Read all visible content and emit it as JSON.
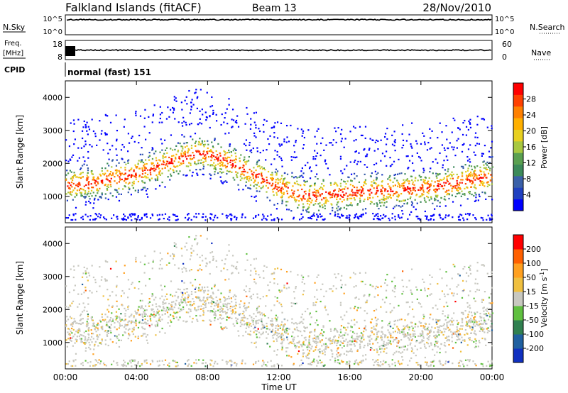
{
  "header": {
    "title": "Falkland Islands (fitACF)",
    "beam": "Beam 13",
    "date": "28/Nov/2010"
  },
  "strips": {
    "nsky": {
      "label": "N.Sky",
      "ticks": [
        "10^5",
        "10^0"
      ]
    },
    "nsearch": {
      "label": "N.Search"
    },
    "freq": {
      "label_line1": "Freq.",
      "label_line2": "[MHz]",
      "ticks": [
        "18",
        "8"
      ]
    },
    "nave": {
      "label": "Nave",
      "ticks": [
        "60",
        "0"
      ]
    },
    "cpid": {
      "label": "CPID",
      "value": "normal (fast) 151"
    }
  },
  "chart_data": [
    {
      "type": "heatmap",
      "quantity": "power",
      "ylabel": "Slant Range [km]",
      "ylim": [
        200,
        4500
      ],
      "yticks": [
        1000,
        2000,
        3000,
        4000
      ],
      "xlim": [
        0,
        24
      ],
      "xticks": [
        "00:00",
        "04:00",
        "08:00",
        "12:00",
        "16:00",
        "20:00",
        "00:00"
      ],
      "colorbar": {
        "label": "Power [dB]",
        "ticks": [
          "28",
          "24",
          "20",
          "16",
          "12",
          "8",
          "4"
        ],
        "colors": [
          "#0000ff",
          "#2040c0",
          "#3a60a8",
          "#3c8a5a",
          "#5aa050",
          "#a8c840",
          "#e8d020",
          "#ffb000",
          "#ff8000",
          "#ff4000",
          "#ff0000"
        ]
      },
      "bands": [
        {
          "t": [
            0,
            2,
            4,
            6,
            7.5,
            9,
            10.5,
            12,
            13.5,
            15,
            16.5,
            18,
            19.5,
            21,
            22.5,
            24
          ],
          "range": [
            1350,
            1500,
            1700,
            2100,
            2350,
            2100,
            1700,
            1300,
            1050,
            1100,
            1150,
            1200,
            1250,
            1300,
            1500,
            1600
          ],
          "width": 600
        }
      ]
    },
    {
      "type": "heatmap",
      "quantity": "velocity",
      "ylabel": "Slant Range [km]",
      "ylim": [
        200,
        4500
      ],
      "yticks": [
        1000,
        2000,
        3000,
        4000
      ],
      "xlim": [
        0,
        24
      ],
      "xticks": [
        "00:00",
        "04:00",
        "08:00",
        "12:00",
        "16:00",
        "20:00",
        "00:00"
      ],
      "xlabel": "Time UT",
      "colorbar": {
        "label": "Velocity [m s",
        "label_sup": "-1",
        "label_end": "]",
        "ticks": [
          "200",
          "100",
          "50",
          "15",
          "-15",
          "-50",
          "-100",
          "-200"
        ],
        "colors": [
          "#1030c0",
          "#2060a0",
          "#308050",
          "#60c040",
          "#c8c8c0",
          "#f0c040",
          "#ffa020",
          "#ff6000",
          "#ff0000"
        ]
      }
    }
  ]
}
